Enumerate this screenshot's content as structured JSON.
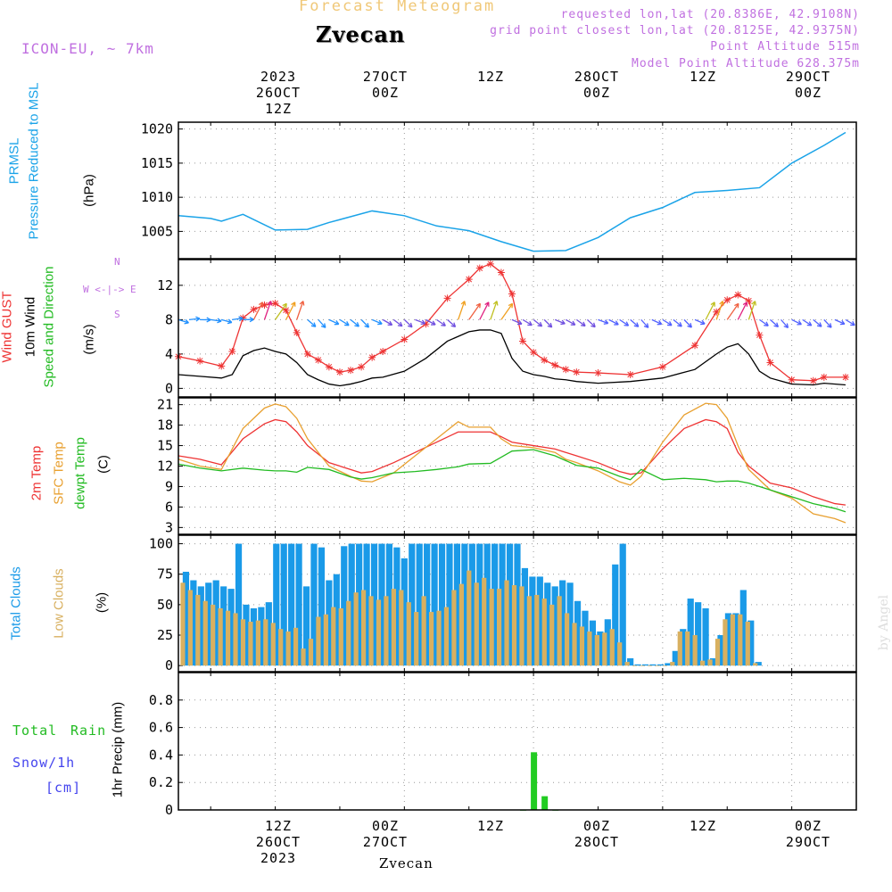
{
  "header": {
    "subtitle": "Forecast Meteogram",
    "station": "Zvecan",
    "model": "ICON-EU, ~ 7km",
    "requested": "requested lon,lat (20.8386E, 42.9108N)",
    "gridpoint": "grid point closest lon,lat (20.8125E, 42.9375N)",
    "point_altitude": "Point Altitude 515m",
    "model_altitude": "Model Point Altitude 628.375m"
  },
  "top_axis": [
    {
      "lines": [
        "2023",
        "26OCT",
        "12Z"
      ]
    },
    {
      "lines": [
        "",
        "27OCT",
        "00Z"
      ]
    },
    {
      "lines": [
        "",
        "",
        "12Z"
      ]
    },
    {
      "lines": [
        "",
        "28OCT",
        "00Z"
      ]
    },
    {
      "lines": [
        "",
        "",
        "12Z"
      ]
    },
    {
      "lines": [
        "",
        "29OCT",
        "00Z"
      ]
    }
  ],
  "bottom_axis": [
    {
      "lines": [
        "12Z",
        "26OCT",
        "2023"
      ]
    },
    {
      "lines": [
        "00Z",
        "27OCT",
        ""
      ]
    },
    {
      "lines": [
        "12Z",
        "",
        ""
      ]
    },
    {
      "lines": [
        "00Z",
        "28OCT",
        ""
      ]
    },
    {
      "lines": [
        "12Z",
        "",
        ""
      ]
    },
    {
      "lines": [
        "00Z",
        "29OCT",
        ""
      ]
    }
  ],
  "footer": "Zvecan",
  "credit": "by Angel",
  "legend_colors": {
    "pressure": "#1aa3e8",
    "gust": "#ee3333",
    "wind": "#000000",
    "wind_dir": "#22bb22",
    "temp": "#ee3333",
    "sfc": "#e8a030",
    "dewpt": "#22bb22",
    "total_clouds": "#1a9ae8",
    "low_clouds": "#d8b060",
    "rain": "#22cc22",
    "snow": "#4444ee",
    "dir_hint": "#c070e0"
  },
  "chart_data": [
    {
      "type": "line",
      "id": "pressure",
      "ylabel_parts": [
        "PRMSL",
        "Pressure Reduced to MSL"
      ],
      "units": "(hPa)",
      "ylim": [
        1001,
        1021
      ],
      "yticks": [
        1005,
        1010,
        1015,
        1020
      ],
      "xlim": [
        -9,
        54
      ],
      "x": [
        -9,
        -6,
        -5,
        -3,
        0,
        3,
        5,
        9,
        12,
        15,
        18,
        21,
        24,
        27,
        30,
        33,
        36,
        39,
        42,
        45,
        48,
        51,
        53
      ],
      "values": [
        1007.3,
        1006.9,
        1006.5,
        1007.5,
        1005.2,
        1005.3,
        1006.3,
        1008,
        1007.3,
        1005.8,
        1005.1,
        1003.5,
        1002.1,
        1002.2,
        1004.1,
        1007,
        1008.5,
        1010.7,
        1011,
        1011.4,
        1015,
        1017.6,
        1019.5
      ]
    },
    {
      "type": "line",
      "id": "wind",
      "ylabel_parts": [
        "Wind GUST",
        "10m Wind",
        "Speed and Direction"
      ],
      "units": "(m/s)",
      "dir_hint": [
        "N",
        "W <-|-> E",
        "S"
      ],
      "ylim": [
        -1,
        15
      ],
      "yticks": [
        0,
        4,
        8,
        12
      ],
      "xlim": [
        -9,
        54
      ],
      "x": [
        -9,
        -7,
        -5,
        -4,
        -3,
        -2,
        -1,
        0,
        1,
        2,
        3,
        4,
        5,
        6,
        7,
        8,
        9,
        10,
        12,
        14,
        16,
        18,
        19,
        20,
        21,
        22,
        23,
        24,
        25,
        26,
        27,
        28,
        30,
        33,
        36,
        39,
        41,
        42,
        43,
        44,
        45,
        46,
        48,
        50,
        51,
        53
      ],
      "series": [
        {
          "name": "Wind GUST",
          "values": [
            3.7,
            3.2,
            2.6,
            4.3,
            8.2,
            9.2,
            9.7,
            9.9,
            9.1,
            6.5,
            4,
            3.3,
            2.5,
            1.9,
            2.1,
            2.5,
            3.6,
            4.3,
            5.7,
            7.5,
            10.5,
            12.7,
            14,
            14.5,
            13.5,
            11,
            5.5,
            4.2,
            3.3,
            2.7,
            2.2,
            1.9,
            1.8,
            1.6,
            2.5,
            5,
            8.9,
            10.3,
            10.9,
            10.2,
            6.2,
            3,
            1,
            0.9,
            1.3,
            1.3
          ]
        },
        {
          "name": "10m Wind",
          "values": [
            1.6,
            1.4,
            1.2,
            1.6,
            3.8,
            4.4,
            4.7,
            4.3,
            4,
            3,
            1.6,
            1,
            0.5,
            0.3,
            0.5,
            0.8,
            1.2,
            1.3,
            2,
            3.5,
            5.5,
            6.6,
            6.8,
            6.8,
            6.4,
            3.5,
            2,
            1.6,
            1.4,
            1.1,
            1,
            0.8,
            0.6,
            0.8,
            1.2,
            2.2,
            4,
            4.8,
            5.2,
            4,
            2,
            1.2,
            0.5,
            0.4,
            0.6,
            0.4
          ]
        }
      ]
    },
    {
      "type": "line",
      "id": "temperature",
      "ylabel_parts": [
        "2m Temp",
        "SFC Temp",
        "dewpt Temp"
      ],
      "units": "(C)",
      "ylim": [
        2,
        22
      ],
      "yticks": [
        3,
        6,
        9,
        12,
        15,
        18,
        21
      ],
      "xlim": [
        -9,
        54
      ],
      "x": [
        -9,
        -7,
        -5,
        -3,
        -1,
        0,
        1,
        2,
        3,
        5,
        7,
        8,
        9,
        11,
        13,
        15,
        17,
        18,
        20,
        21,
        22,
        24,
        26,
        27,
        28,
        30,
        32,
        33,
        34,
        36,
        38,
        40,
        41,
        42,
        43,
        44,
        46,
        48,
        50,
        52,
        53
      ],
      "series": [
        {
          "name": "2m Temp",
          "values": [
            13.5,
            13,
            12.2,
            16,
            18.2,
            18.8,
            18.5,
            17,
            15,
            12.5,
            11.5,
            11,
            11.2,
            12.5,
            14,
            15.5,
            17,
            17,
            17,
            16.3,
            15.5,
            15,
            14.5,
            14,
            13.5,
            12.5,
            11.2,
            10.8,
            11,
            14.5,
            17.5,
            18.8,
            18.5,
            17.5,
            14,
            12,
            9.5,
            8.8,
            7.5,
            6.5,
            6.3
          ]
        },
        {
          "name": "SFC Temp",
          "values": [
            13,
            12,
            11.5,
            17.5,
            20.5,
            21.1,
            20.7,
            19,
            16,
            12,
            10.5,
            9.8,
            9.7,
            11,
            13.5,
            16,
            18.5,
            17.7,
            17.7,
            16,
            15,
            14.7,
            14,
            13,
            12.5,
            11.3,
            9.7,
            9.2,
            10.5,
            15.5,
            19.5,
            21.2,
            21,
            19,
            15,
            11.5,
            8.5,
            7.3,
            5,
            4.3,
            3.7
          ]
        },
        {
          "name": "dewpt Temp",
          "values": [
            12.3,
            11.7,
            11.3,
            11.7,
            11.4,
            11.3,
            11.3,
            11.1,
            11.8,
            11.5,
            10.4,
            10.1,
            10.3,
            11,
            11.2,
            11.5,
            11.9,
            12.3,
            12.4,
            13.3,
            14.2,
            14.4,
            13.5,
            12.8,
            12.1,
            11.7,
            10.5,
            10,
            11.5,
            10,
            10.2,
            10,
            9.7,
            9.8,
            9.8,
            9.5,
            8.5,
            7.5,
            6.5,
            5.8,
            5.3
          ]
        }
      ]
    },
    {
      "type": "bar",
      "id": "clouds",
      "ylabel_parts": [
        "Total Clouds",
        "Low Clouds"
      ],
      "units": "(%)",
      "ylim": [
        -5,
        107
      ],
      "yticks": [
        0,
        25,
        50,
        75,
        100
      ],
      "xlim": [
        -9,
        54
      ],
      "x_start": -8.6,
      "x_step": 0.7,
      "series": [
        {
          "name": "Total Clouds",
          "values": [
            77,
            70,
            65,
            68,
            70,
            65,
            63,
            100,
            50,
            47,
            48,
            52,
            100,
            100,
            100,
            100,
            65,
            100,
            97,
            70,
            75,
            98,
            100,
            100,
            100,
            100,
            100,
            100,
            97,
            88,
            100,
            100,
            100,
            100,
            100,
            100,
            100,
            100,
            100,
            100,
            100,
            100,
            100,
            100,
            100,
            80,
            73,
            73,
            68,
            65,
            70,
            68,
            53,
            45,
            37,
            28,
            38,
            83,
            100,
            6,
            1,
            1,
            1,
            1,
            2,
            12,
            30,
            55,
            52,
            47,
            6,
            25,
            43,
            43,
            62,
            37,
            3
          ]
        },
        {
          "name": "Low Clouds",
          "values": [
            68,
            62,
            58,
            53,
            50,
            47,
            45,
            43,
            38,
            36,
            37,
            38,
            35,
            30,
            28,
            31,
            14,
            22,
            40,
            42,
            48,
            47,
            53,
            60,
            62,
            57,
            54,
            57,
            63,
            62,
            52,
            44,
            57,
            44,
            45,
            48,
            62,
            67,
            78,
            68,
            72,
            63,
            63,
            70,
            66,
            65,
            57,
            58,
            55,
            50,
            57,
            43,
            35,
            32,
            28,
            25,
            27,
            30,
            19,
            3,
            0,
            0,
            0,
            0,
            0,
            3,
            28,
            28,
            25,
            4,
            5,
            22,
            38,
            42,
            42,
            36,
            2
          ]
        }
      ]
    },
    {
      "type": "bar",
      "id": "precip",
      "ylabel_parts": [
        "Total",
        "Rain",
        "Snow/1h",
        "[cm]"
      ],
      "units": "1hr Precip (mm)",
      "ylim": [
        0,
        1
      ],
      "yticks": [
        0,
        0.2,
        0.4,
        0.6,
        0.8
      ],
      "xlim": [
        -9,
        54
      ],
      "x": [
        23,
        24,
        25,
        26
      ],
      "values": [
        0.0,
        0.42,
        0.1,
        0.0
      ]
    }
  ]
}
